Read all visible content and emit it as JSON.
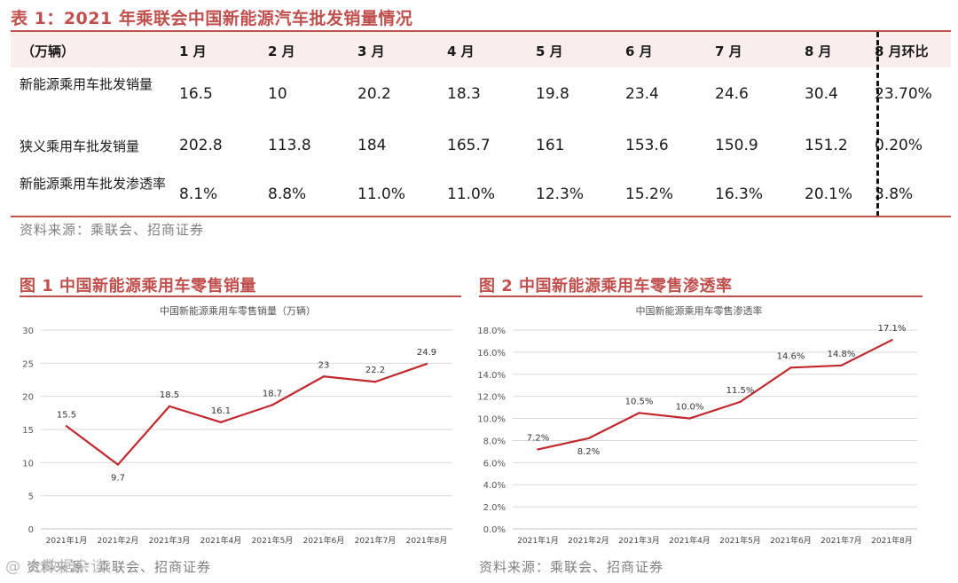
{
  "table": {
    "title": "表 1：2021 年乘联会中国新能源汽车批发销量情况",
    "unit_header": "（万辆）",
    "columns": [
      "1 月",
      "2 月",
      "3 月",
      "4 月",
      "5 月",
      "6 月",
      "7 月",
      "8 月"
    ],
    "mom_header": "8 月环比",
    "rows": [
      {
        "label": "新能源乘用车批发销量",
        "values": [
          "16.5",
          "10",
          "20.2",
          "18.3",
          "19.8",
          "23.4",
          "24.6",
          "30.4"
        ],
        "mom": "23.70%"
      },
      {
        "label": "狭义乘用车批发销量",
        "values": [
          "202.8",
          "113.8",
          "184",
          "165.7",
          "161",
          "153.6",
          "150.9",
          "151.2"
        ],
        "mom": "0.20%"
      },
      {
        "label": "新能源乘用车批发渗透率",
        "values": [
          "8.1%",
          "8.8%",
          "11.0%",
          "11.0%",
          "12.3%",
          "15.2%",
          "16.3%",
          "20.1%"
        ],
        "mom": "3.8%"
      }
    ],
    "source": "资料来源：乘联会、招商证券"
  },
  "figure1": {
    "heading": "图 1  中国新能源乘用车零售销量",
    "source": "资料来源：乘联会、招商证券"
  },
  "figure2": {
    "heading": "图 2  中国新能源乘用车零售渗透率",
    "source": "资料来源：乘联会、招商证券"
  },
  "watermark": "@ 大数据杂谈",
  "colors": {
    "accent": "#c0504d",
    "line": "#c0282d",
    "grid": "#d9d9d9"
  },
  "chart_data": [
    {
      "type": "line",
      "title": "中国新能源乘用车零售销量（万辆）",
      "categories": [
        "2021年1月",
        "2021年2月",
        "2021年3月",
        "2021年4月",
        "2021年5月",
        "2021年6月",
        "2021年7月",
        "2021年8月"
      ],
      "values": [
        15.5,
        9.7,
        18.5,
        16.1,
        18.7,
        23,
        22.2,
        24.9
      ],
      "data_labels": [
        "15.5",
        "9.7",
        "18.5",
        "16.1",
        "18.7",
        "23",
        "22.2",
        "24.9"
      ],
      "ylim": [
        0,
        30
      ],
      "yticks": [
        "0",
        "5",
        "10",
        "15",
        "20",
        "25",
        "30"
      ],
      "grid": true,
      "xlabel": "",
      "ylabel": ""
    },
    {
      "type": "line",
      "title": "中国新能源乘用车零售渗透率",
      "categories": [
        "2021年1月",
        "2021年2月",
        "2021年3月",
        "2021年4月",
        "2021年5月",
        "2021年6月",
        "2021年7月",
        "2021年8月"
      ],
      "values": [
        7.2,
        8.2,
        10.5,
        10.0,
        11.5,
        14.6,
        14.8,
        17.1
      ],
      "data_labels": [
        "7.2%",
        "8.2%",
        "10.5%",
        "10.0%",
        "11.5%",
        "14.6%",
        "14.8%",
        "17.1%"
      ],
      "ylim": [
        0,
        18
      ],
      "yticks": [
        "0.0%",
        "2.0%",
        "4.0%",
        "6.0%",
        "8.0%",
        "10.0%",
        "12.0%",
        "14.0%",
        "16.0%",
        "18.0%"
      ],
      "grid": true,
      "xlabel": "",
      "ylabel": ""
    }
  ]
}
